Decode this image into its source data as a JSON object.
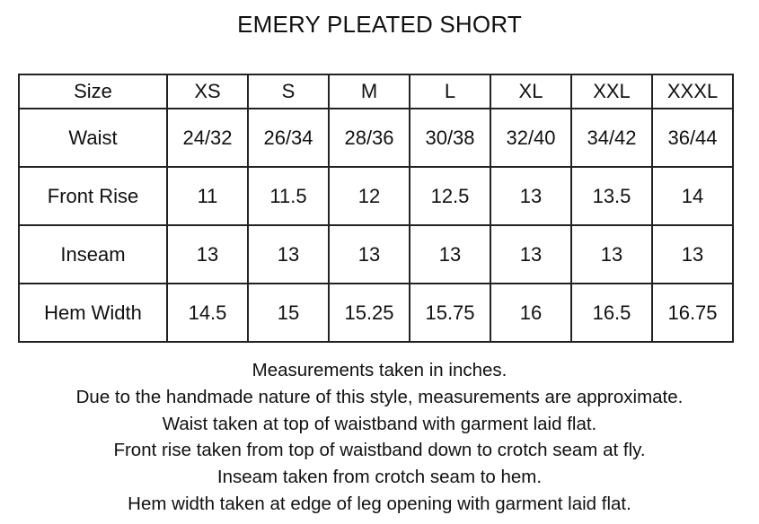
{
  "title": "EMERY PLEATED SHORT",
  "table": {
    "header": [
      "Size",
      "XS",
      "S",
      "M",
      "L",
      "XL",
      "XXL",
      "XXXL"
    ],
    "rows": [
      [
        "Waist",
        "24/32",
        "26/34",
        "28/36",
        "30/38",
        "32/40",
        "34/42",
        "36/44"
      ],
      [
        "Front Rise",
        "11",
        "11.5",
        "12",
        "12.5",
        "13",
        "13.5",
        "14"
      ],
      [
        "Inseam",
        "13",
        "13",
        "13",
        "13",
        "13",
        "13",
        "13"
      ],
      [
        "Hem Width",
        "14.5",
        "15",
        "15.25",
        "15.75",
        "16",
        "16.5",
        "16.75"
      ]
    ]
  },
  "notes": [
    "Measurements taken in inches.",
    "Due to the handmade nature of this style, measurements are approximate.",
    "Waist taken at top of waistband with garment laid flat.",
    "Front rise taken from top of waistband down to crotch seam at fly.",
    "Inseam taken from crotch seam to hem.",
    "Hem width taken at edge of leg opening with garment laid flat."
  ]
}
